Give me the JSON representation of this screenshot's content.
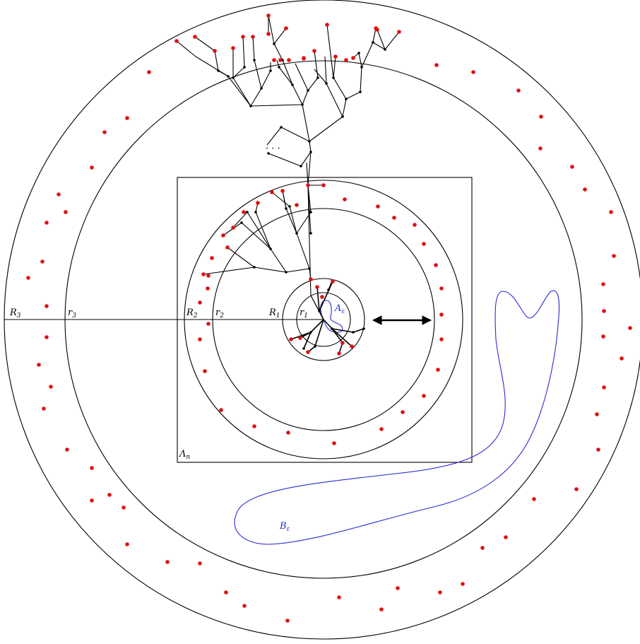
{
  "labels": {
    "R3": "R",
    "R3_sub": "3",
    "r3": "r",
    "r3_sub": "3",
    "R2": "R",
    "R2_sub": "2",
    "r2": "r",
    "r2_sub": "2",
    "R1": "R",
    "R1_sub": "1",
    "r1": "r",
    "r1_sub": "1",
    "A": "A",
    "A_sub": "ε",
    "B": "B",
    "B_sub": "ε",
    "Lambda": "Λ",
    "Lambda_sub": "n",
    "dots": "· · ·"
  },
  "colors": {
    "line": "#000000",
    "curve": "#2a2ad6",
    "dot": "#e01010"
  }
}
